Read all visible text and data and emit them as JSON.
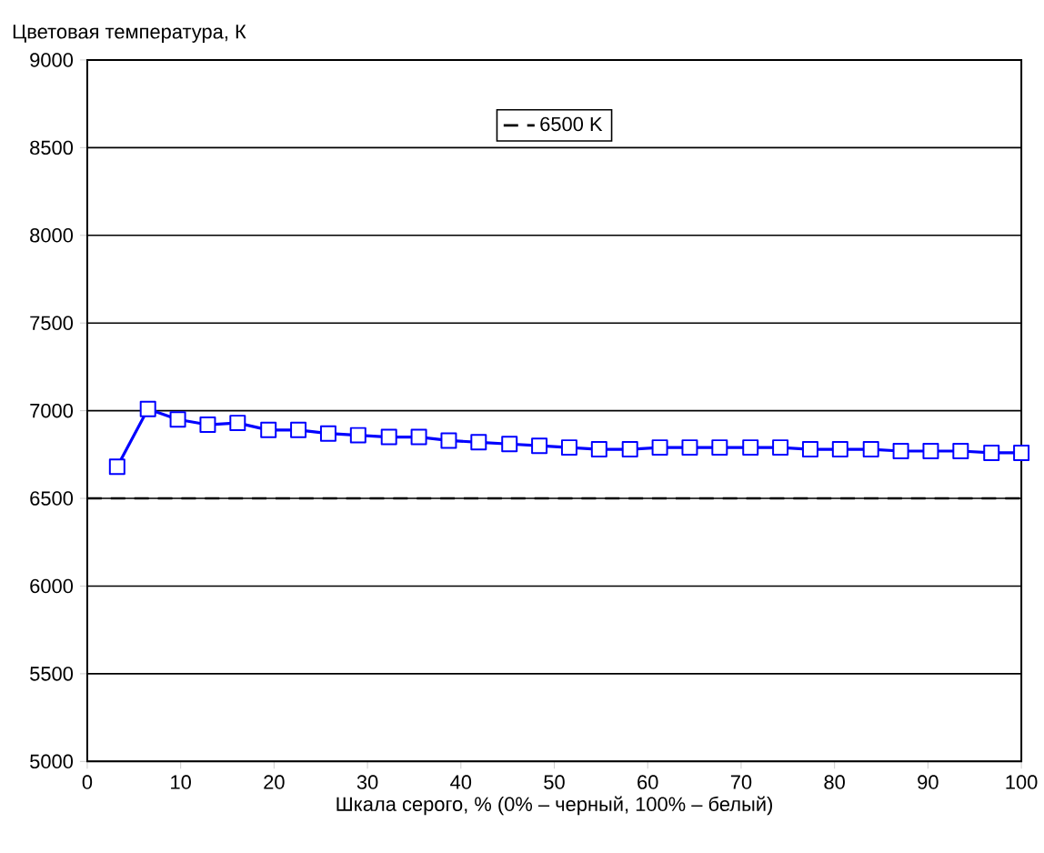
{
  "chart_data": {
    "type": "line",
    "xlabel": "Шкала серого, % (0% – черный, 100% – белый)",
    "ylabel": "Цветовая температура, К",
    "xlim": [
      0,
      100
    ],
    "ylim": [
      5000,
      9000
    ],
    "xticks": [
      0,
      10,
      20,
      30,
      40,
      50,
      60,
      70,
      80,
      90,
      100
    ],
    "yticks": [
      5000,
      5500,
      6000,
      6500,
      7000,
      7500,
      8000,
      8500,
      9000
    ],
    "grid": "y",
    "legend": "top",
    "marker": "square",
    "line_style": "solid",
    "series": [
      {
        "color": "#0000ff",
        "x": [
          3.2,
          6.5,
          9.7,
          12.9,
          16.1,
          19.4,
          22.6,
          25.8,
          29,
          32.3,
          35.5,
          38.7,
          41.9,
          45.2,
          48.4,
          51.6,
          54.8,
          58.1,
          61.3,
          64.5,
          67.7,
          71,
          74.2,
          77.4,
          80.6,
          83.9,
          87.1,
          90.3,
          93.5,
          96.8,
          100
        ],
        "values": [
          6680,
          7010,
          6950,
          6920,
          6930,
          6890,
          6890,
          6870,
          6860,
          6850,
          6850,
          6830,
          6820,
          6810,
          6800,
          6790,
          6780,
          6780,
          6790,
          6790,
          6790,
          6790,
          6790,
          6780,
          6780,
          6780,
          6770,
          6770,
          6770,
          6760,
          6760
        ]
      }
    ],
    "ref_lines": [
      {
        "axis": "y",
        "value": 6500,
        "label": "6500 K",
        "color": "#000000",
        "line_style": "dashed"
      }
    ]
  }
}
